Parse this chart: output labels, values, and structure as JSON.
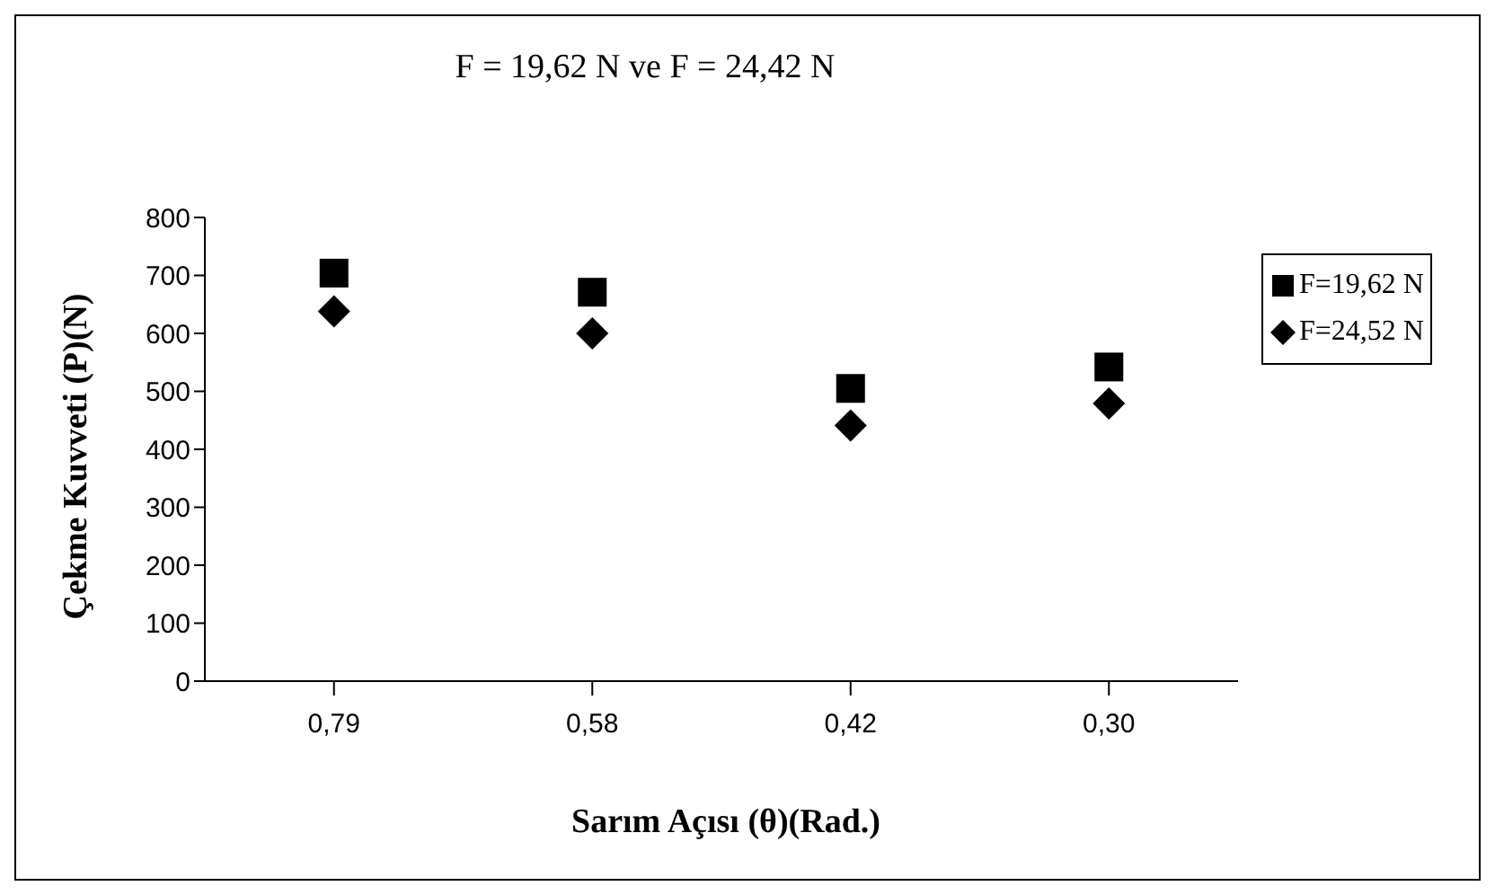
{
  "chart_data": {
    "type": "scatter",
    "title": "F = 19,62 N ve F = 24,42 N",
    "xlabel": "Sarım Açısı (θ)(Rad.)",
    "ylabel": "Çekme Kuvveti (P)(N)",
    "categories": [
      "0,79",
      "0,58",
      "0,42",
      "0,30"
    ],
    "ylim": [
      0,
      800
    ],
    "yticks": [
      0,
      100,
      200,
      300,
      400,
      500,
      600,
      700,
      800
    ],
    "grid": false,
    "legend": "right",
    "series": [
      {
        "name": "F=19,62 N",
        "color": "#000000",
        "marker": "square",
        "values": [
          704,
          671,
          505,
          542
        ]
      },
      {
        "name": "F=24,52 N",
        "color": "#000000",
        "marker": "diamond",
        "values": [
          638,
          600,
          441,
          479
        ]
      }
    ]
  }
}
